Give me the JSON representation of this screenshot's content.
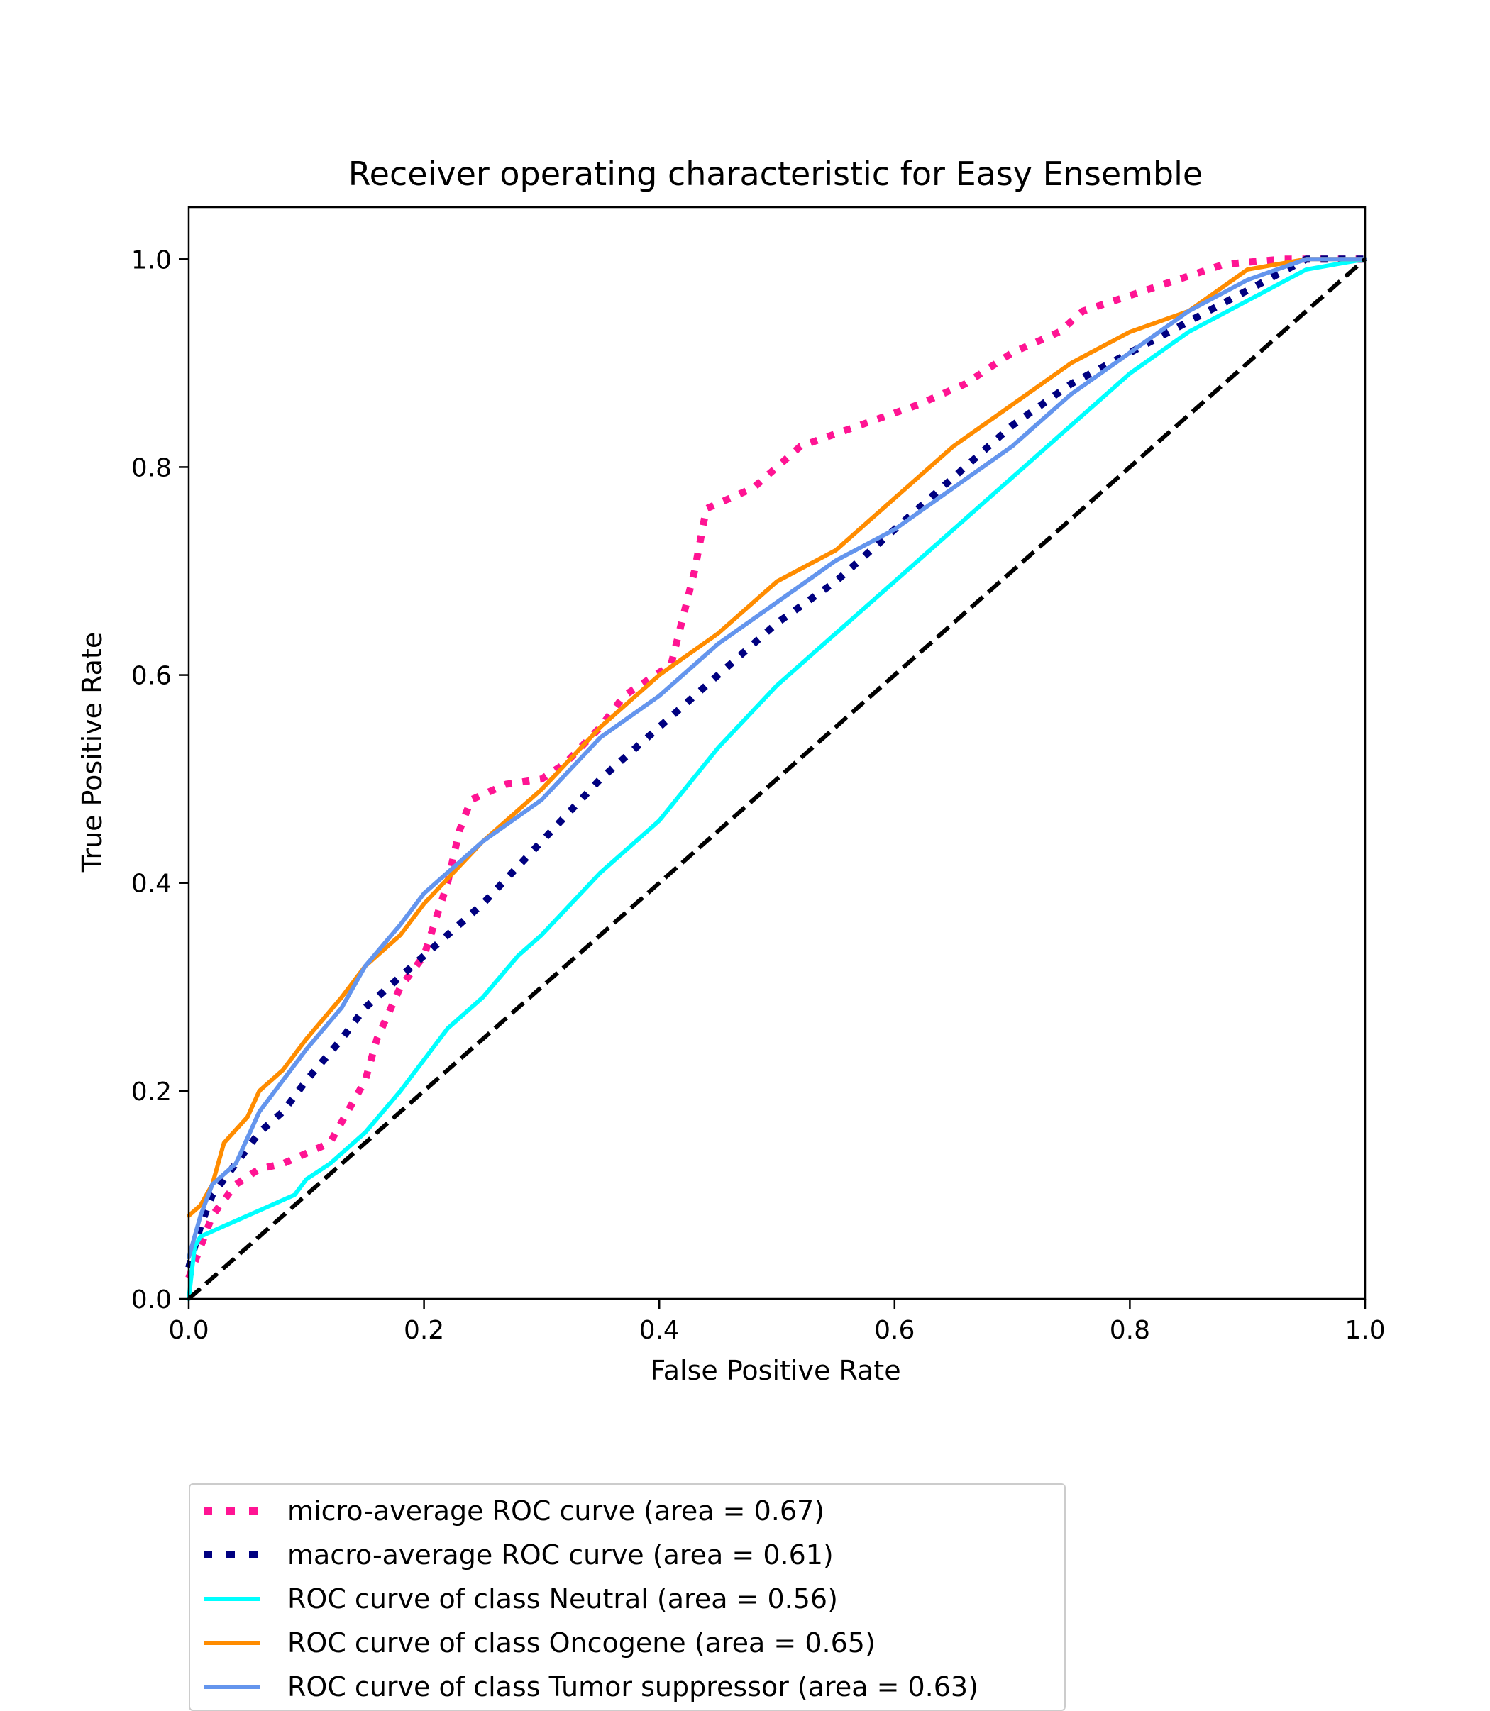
{
  "chart_data": {
    "type": "line",
    "title": "Receiver operating characteristic for Easy Ensemble",
    "xlabel": "False Positive Rate",
    "ylabel": "True Positive Rate",
    "xlim": [
      0.0,
      1.0
    ],
    "ylim": [
      0.0,
      1.05
    ],
    "xticks": [
      "0.0",
      "0.2",
      "0.4",
      "0.6",
      "0.8",
      "1.0"
    ],
    "yticks": [
      "0.0",
      "0.2",
      "0.4",
      "0.6",
      "0.8",
      "1.0"
    ],
    "grid": false,
    "legend_position": "below plot, left",
    "diagonal": {
      "color": "#000000",
      "style": "dashed",
      "points": [
        [
          0,
          0
        ],
        [
          1,
          1
        ]
      ]
    },
    "series": [
      {
        "name": "micro-average ROC curve (area = 0.67)",
        "color": "#ff1493",
        "style": "dotted",
        "points": [
          [
            0,
            0.02
          ],
          [
            0.01,
            0.05
          ],
          [
            0.02,
            0.08
          ],
          [
            0.04,
            0.11
          ],
          [
            0.06,
            0.125
          ],
          [
            0.08,
            0.13
          ],
          [
            0.1,
            0.14
          ],
          [
            0.12,
            0.15
          ],
          [
            0.13,
            0.17
          ],
          [
            0.15,
            0.21
          ],
          [
            0.16,
            0.25
          ],
          [
            0.18,
            0.3
          ],
          [
            0.2,
            0.33
          ],
          [
            0.22,
            0.4
          ],
          [
            0.23,
            0.45
          ],
          [
            0.24,
            0.48
          ],
          [
            0.27,
            0.495
          ],
          [
            0.3,
            0.5
          ],
          [
            0.32,
            0.515
          ],
          [
            0.35,
            0.55
          ],
          [
            0.37,
            0.58
          ],
          [
            0.41,
            0.61
          ],
          [
            0.43,
            0.7
          ],
          [
            0.44,
            0.76
          ],
          [
            0.48,
            0.78
          ],
          [
            0.52,
            0.82
          ],
          [
            0.57,
            0.84
          ],
          [
            0.62,
            0.86
          ],
          [
            0.66,
            0.88
          ],
          [
            0.7,
            0.91
          ],
          [
            0.74,
            0.93
          ],
          [
            0.76,
            0.95
          ],
          [
            0.84,
            0.98
          ],
          [
            0.88,
            0.995
          ],
          [
            0.93,
            1.0
          ],
          [
            1.0,
            1.0
          ]
        ]
      },
      {
        "name": "macro-average ROC curve (area = 0.61)",
        "color": "#000080",
        "style": "dotted",
        "points": [
          [
            0,
            0.03
          ],
          [
            0.01,
            0.07
          ],
          [
            0.02,
            0.1
          ],
          [
            0.04,
            0.13
          ],
          [
            0.06,
            0.16
          ],
          [
            0.08,
            0.18
          ],
          [
            0.1,
            0.21
          ],
          [
            0.13,
            0.25
          ],
          [
            0.15,
            0.28
          ],
          [
            0.18,
            0.31
          ],
          [
            0.2,
            0.33
          ],
          [
            0.25,
            0.38
          ],
          [
            0.3,
            0.44
          ],
          [
            0.35,
            0.5
          ],
          [
            0.4,
            0.55
          ],
          [
            0.45,
            0.6
          ],
          [
            0.5,
            0.65
          ],
          [
            0.55,
            0.69
          ],
          [
            0.6,
            0.74
          ],
          [
            0.65,
            0.79
          ],
          [
            0.7,
            0.84
          ],
          [
            0.75,
            0.88
          ],
          [
            0.8,
            0.91
          ],
          [
            0.85,
            0.94
          ],
          [
            0.9,
            0.97
          ],
          [
            0.95,
            1.0
          ],
          [
            1.0,
            1.0
          ]
        ]
      },
      {
        "name": "ROC curve of class Neutral (area = 0.56)",
        "color": "#00ffff",
        "style": "solid",
        "points": [
          [
            0,
            0.0
          ],
          [
            0.005,
            0.05
          ],
          [
            0.01,
            0.06
          ],
          [
            0.03,
            0.07
          ],
          [
            0.05,
            0.08
          ],
          [
            0.07,
            0.09
          ],
          [
            0.09,
            0.1
          ],
          [
            0.1,
            0.115
          ],
          [
            0.12,
            0.13
          ],
          [
            0.15,
            0.16
          ],
          [
            0.18,
            0.2
          ],
          [
            0.2,
            0.23
          ],
          [
            0.22,
            0.26
          ],
          [
            0.25,
            0.29
          ],
          [
            0.28,
            0.33
          ],
          [
            0.3,
            0.35
          ],
          [
            0.35,
            0.41
          ],
          [
            0.4,
            0.46
          ],
          [
            0.45,
            0.53
          ],
          [
            0.5,
            0.59
          ],
          [
            0.55,
            0.64
          ],
          [
            0.6,
            0.69
          ],
          [
            0.65,
            0.74
          ],
          [
            0.7,
            0.79
          ],
          [
            0.75,
            0.84
          ],
          [
            0.8,
            0.89
          ],
          [
            0.85,
            0.93
          ],
          [
            0.9,
            0.96
          ],
          [
            0.95,
            0.99
          ],
          [
            1.0,
            1.0
          ]
        ]
      },
      {
        "name": "ROC curve of class Oncogene (area = 0.65)",
        "color": "#ff8c00",
        "style": "solid",
        "points": [
          [
            0,
            0.08
          ],
          [
            0.01,
            0.09
          ],
          [
            0.02,
            0.11
          ],
          [
            0.03,
            0.15
          ],
          [
            0.05,
            0.175
          ],
          [
            0.06,
            0.2
          ],
          [
            0.08,
            0.22
          ],
          [
            0.1,
            0.25
          ],
          [
            0.13,
            0.29
          ],
          [
            0.15,
            0.32
          ],
          [
            0.18,
            0.35
          ],
          [
            0.2,
            0.38
          ],
          [
            0.25,
            0.44
          ],
          [
            0.3,
            0.49
          ],
          [
            0.35,
            0.55
          ],
          [
            0.4,
            0.6
          ],
          [
            0.45,
            0.64
          ],
          [
            0.5,
            0.69
          ],
          [
            0.55,
            0.72
          ],
          [
            0.6,
            0.77
          ],
          [
            0.65,
            0.82
          ],
          [
            0.7,
            0.86
          ],
          [
            0.75,
            0.9
          ],
          [
            0.8,
            0.93
          ],
          [
            0.85,
            0.95
          ],
          [
            0.9,
            0.99
          ],
          [
            0.95,
            1.0
          ],
          [
            1.0,
            1.0
          ]
        ]
      },
      {
        "name": "ROC curve of class Tumor suppressor (area = 0.63)",
        "color": "#6495ed",
        "style": "solid",
        "points": [
          [
            0,
            0.04
          ],
          [
            0.01,
            0.08
          ],
          [
            0.02,
            0.11
          ],
          [
            0.04,
            0.13
          ],
          [
            0.06,
            0.18
          ],
          [
            0.08,
            0.21
          ],
          [
            0.1,
            0.24
          ],
          [
            0.13,
            0.28
          ],
          [
            0.15,
            0.32
          ],
          [
            0.18,
            0.36
          ],
          [
            0.2,
            0.39
          ],
          [
            0.25,
            0.44
          ],
          [
            0.3,
            0.48
          ],
          [
            0.35,
            0.54
          ],
          [
            0.4,
            0.58
          ],
          [
            0.45,
            0.63
          ],
          [
            0.5,
            0.67
          ],
          [
            0.55,
            0.71
          ],
          [
            0.6,
            0.74
          ],
          [
            0.65,
            0.78
          ],
          [
            0.7,
            0.82
          ],
          [
            0.75,
            0.87
          ],
          [
            0.8,
            0.91
          ],
          [
            0.85,
            0.95
          ],
          [
            0.9,
            0.98
          ],
          [
            0.95,
            1.0
          ],
          [
            1.0,
            1.0
          ]
        ]
      }
    ]
  }
}
